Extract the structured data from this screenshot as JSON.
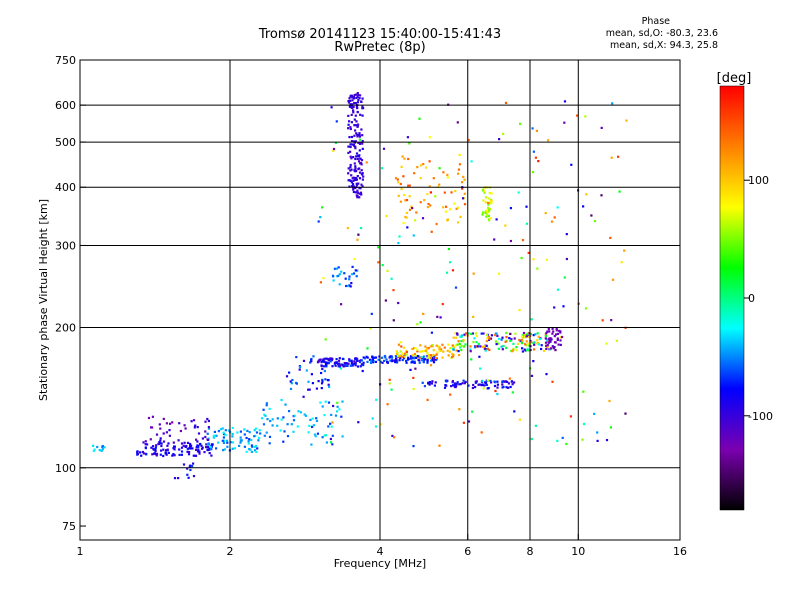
{
  "title_line1": "Tromsø 20141123 15:40:00-15:41:43",
  "title_line2": "RwPretec (8p)",
  "phase_box": {
    "heading": "Phase",
    "line1": "mean, sd,O: -80.3, 23.6",
    "line2": "mean, sd,X:  94.3, 25.8"
  },
  "chart_data": {
    "type": "scatter",
    "xlabel": "Frequency [MHz]",
    "ylabel": "Stationary phase Virtual Height [km]",
    "x_scale": "log",
    "y_scale": "log",
    "xlim": [
      1,
      16
    ],
    "ylim": [
      70,
      750
    ],
    "x_ticks": [
      1,
      2,
      4,
      6,
      8,
      10,
      16
    ],
    "y_ticks": [
      75,
      100,
      200,
      300,
      400,
      500,
      600,
      750
    ],
    "x_gridlines": [
      2,
      4,
      6,
      8,
      10
    ],
    "y_gridlines": [
      100,
      200,
      300,
      400,
      500,
      600
    ],
    "grid": true,
    "colorbar": {
      "label": "[deg]",
      "min": -180,
      "max": 180,
      "ticks": [
        100,
        0,
        -100
      ],
      "colormap": [
        "#000000",
        "#7a00b0",
        "#0000ff",
        "#00ffff",
        "#00ff00",
        "#ffff00",
        "#ff8000",
        "#ff0000"
      ]
    },
    "clusters": [
      {
        "freq": [
          1.05,
          1.12
        ],
        "height": [
          108,
          112
        ],
        "n": 10,
        "phase": [
          -60,
          -20
        ]
      },
      {
        "freq": [
          1.3,
          1.85
        ],
        "height": [
          106,
          114
        ],
        "n": 120,
        "phase": [
          -110,
          -70
        ]
      },
      {
        "freq": [
          1.8,
          2.3
        ],
        "height": [
          108,
          122
        ],
        "n": 80,
        "phase": [
          -70,
          -20
        ]
      },
      {
        "freq": [
          1.35,
          1.85
        ],
        "height": [
          114,
          130
        ],
        "n": 40,
        "phase": [
          -130,
          -90
        ]
      },
      {
        "freq": [
          1.55,
          1.75
        ],
        "height": [
          95,
          103
        ],
        "n": 12,
        "phase": [
          -100,
          -60
        ]
      },
      {
        "freq": [
          2.3,
          3.4
        ],
        "height": [
          112,
          140
        ],
        "n": 70,
        "phase": [
          -70,
          -20
        ]
      },
      {
        "freq": [
          2.6,
          3.2
        ],
        "height": [
          140,
          175
        ],
        "n": 40,
        "phase": [
          -100,
          -40
        ]
      },
      {
        "freq": [
          3.0,
          3.7
        ],
        "height": [
          165,
          172
        ],
        "n": 90,
        "phase": [
          -110,
          -60
        ]
      },
      {
        "freq": [
          3.7,
          5.2
        ],
        "height": [
          168,
          174
        ],
        "n": 110,
        "phase": [
          -90,
          -50
        ]
      },
      {
        "freq": [
          4.3,
          5.8
        ],
        "height": [
          172,
          184
        ],
        "n": 80,
        "phase": [
          60,
          150
        ]
      },
      {
        "freq": [
          5.6,
          8.8
        ],
        "height": [
          178,
          195
        ],
        "n": 160,
        "phase": [
          -140,
          150
        ]
      },
      {
        "freq": [
          4.8,
          7.5
        ],
        "height": [
          148,
          154
        ],
        "n": 80,
        "phase": [
          -110,
          -60
        ]
      },
      {
        "freq": [
          3.45,
          3.7
        ],
        "height": [
          380,
          640
        ],
        "n": 180,
        "phase": [
          -110,
          -90
        ]
      },
      {
        "freq": [
          4.3,
          6.0
        ],
        "height": [
          330,
          470
        ],
        "n": 70,
        "phase": [
          70,
          150
        ]
      },
      {
        "freq": [
          6.4,
          6.7
        ],
        "height": [
          340,
          400
        ],
        "n": 40,
        "phase": [
          40,
          90
        ]
      },
      {
        "freq": [
          3.2,
          3.6
        ],
        "height": [
          245,
          270
        ],
        "n": 25,
        "phase": [
          -80,
          -30
        ]
      },
      {
        "freq": [
          3.0,
          12.5
        ],
        "height": [
          110,
          620
        ],
        "n": 220,
        "phase": [
          -150,
          170
        ]
      },
      {
        "freq": [
          8.6,
          9.3
        ],
        "height": [
          180,
          200
        ],
        "n": 40,
        "phase": [
          -130,
          -110
        ]
      }
    ]
  }
}
